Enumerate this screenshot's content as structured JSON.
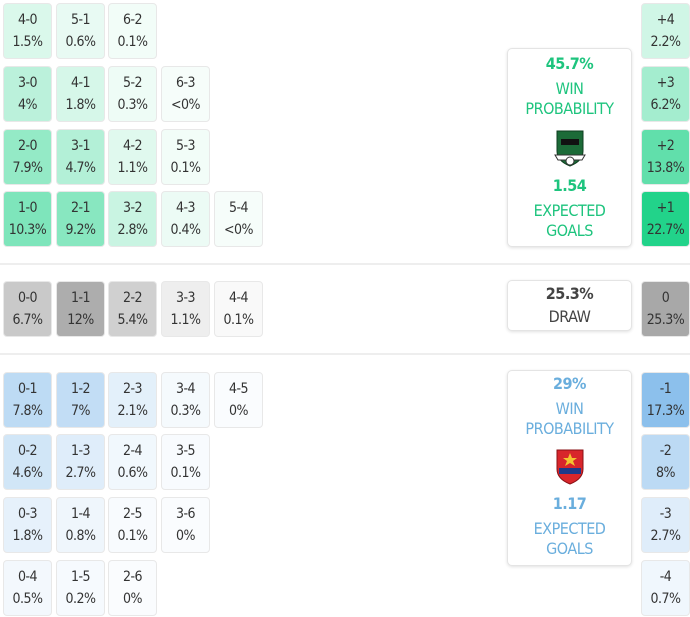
{
  "colors": {
    "home": "#22d38a",
    "home_text": "#1ec47e",
    "draw": "#a8a8a8",
    "away": "#8cc0ec",
    "away_text": "#6aaedd"
  },
  "home": {
    "rows": [
      [
        {
          "score": "4-0",
          "prob": "1.5%",
          "v": 1.5
        },
        {
          "score": "5-1",
          "prob": "0.6%",
          "v": 0.6
        },
        {
          "score": "6-2",
          "prob": "0.1%",
          "v": 0.1
        }
      ],
      [
        {
          "score": "3-0",
          "prob": "4%",
          "v": 4
        },
        {
          "score": "4-1",
          "prob": "1.8%",
          "v": 1.8
        },
        {
          "score": "5-2",
          "prob": "0.3%",
          "v": 0.3
        },
        {
          "score": "6-3",
          "prob": "<0%",
          "v": 0
        }
      ],
      [
        {
          "score": "2-0",
          "prob": "7.9%",
          "v": 7.9
        },
        {
          "score": "3-1",
          "prob": "4.7%",
          "v": 4.7
        },
        {
          "score": "4-2",
          "prob": "1.1%",
          "v": 1.1
        },
        {
          "score": "5-3",
          "prob": "0.1%",
          "v": 0.1
        }
      ],
      [
        {
          "score": "1-0",
          "prob": "10.3%",
          "v": 10.3
        },
        {
          "score": "2-1",
          "prob": "9.2%",
          "v": 9.2
        },
        {
          "score": "3-2",
          "prob": "2.8%",
          "v": 2.8
        },
        {
          "score": "4-3",
          "prob": "0.4%",
          "v": 0.4
        },
        {
          "score": "5-4",
          "prob": "<0%",
          "v": 0
        }
      ]
    ],
    "margins": [
      {
        "label": "+4",
        "prob": "2.2%",
        "v": 2.2
      },
      {
        "label": "+3",
        "prob": "6.2%",
        "v": 6.2
      },
      {
        "label": "+2",
        "prob": "13.8%",
        "v": 13.8
      },
      {
        "label": "+1",
        "prob": "22.7%",
        "v": 22.7
      }
    ],
    "card": {
      "win_pct": "45.7%",
      "win_label": "WIN PROBABILITY",
      "xg": "1.54",
      "xg_label": "EXPECTED GOALS",
      "logo": "krasnodar-crest"
    }
  },
  "draw": {
    "row": [
      {
        "score": "0-0",
        "prob": "6.7%",
        "v": 6.7
      },
      {
        "score": "1-1",
        "prob": "12%",
        "v": 12
      },
      {
        "score": "2-2",
        "prob": "5.4%",
        "v": 5.4
      },
      {
        "score": "3-3",
        "prob": "1.1%",
        "v": 1.1
      },
      {
        "score": "4-4",
        "prob": "0.1%",
        "v": 0.1
      }
    ],
    "margin": {
      "label": "0",
      "prob": "25.3%",
      "v": 25.3
    },
    "card": {
      "pct": "25.3%",
      "label": "DRAW"
    }
  },
  "away": {
    "rows": [
      [
        {
          "score": "0-1",
          "prob": "7.8%",
          "v": 7.8
        },
        {
          "score": "1-2",
          "prob": "7%",
          "v": 7
        },
        {
          "score": "2-3",
          "prob": "2.1%",
          "v": 2.1
        },
        {
          "score": "3-4",
          "prob": "0.3%",
          "v": 0.3
        },
        {
          "score": "4-5",
          "prob": "0%",
          "v": 0
        }
      ],
      [
        {
          "score": "0-2",
          "prob": "4.6%",
          "v": 4.6
        },
        {
          "score": "1-3",
          "prob": "2.7%",
          "v": 2.7
        },
        {
          "score": "2-4",
          "prob": "0.6%",
          "v": 0.6
        },
        {
          "score": "3-5",
          "prob": "0.1%",
          "v": 0.1
        }
      ],
      [
        {
          "score": "0-3",
          "prob": "1.8%",
          "v": 1.8
        },
        {
          "score": "1-4",
          "prob": "0.8%",
          "v": 0.8
        },
        {
          "score": "2-5",
          "prob": "0.1%",
          "v": 0.1
        },
        {
          "score": "3-6",
          "prob": "0%",
          "v": 0
        }
      ],
      [
        {
          "score": "0-4",
          "prob": "0.5%",
          "v": 0.5
        },
        {
          "score": "1-5",
          "prob": "0.2%",
          "v": 0.2
        },
        {
          "score": "2-6",
          "prob": "0%",
          "v": 0
        }
      ]
    ],
    "margins": [
      {
        "label": "-1",
        "prob": "17.3%",
        "v": 17.3
      },
      {
        "label": "-2",
        "prob": "8%",
        "v": 8
      },
      {
        "label": "-3",
        "prob": "2.7%",
        "v": 2.7
      },
      {
        "label": "-4",
        "prob": "0.7%",
        "v": 0.7
      }
    ],
    "card": {
      "win_pct": "29%",
      "win_label": "WIN PROBABILITY",
      "xg": "1.17",
      "xg_label": "EXPECTED GOALS",
      "logo": "cska-crest"
    }
  }
}
